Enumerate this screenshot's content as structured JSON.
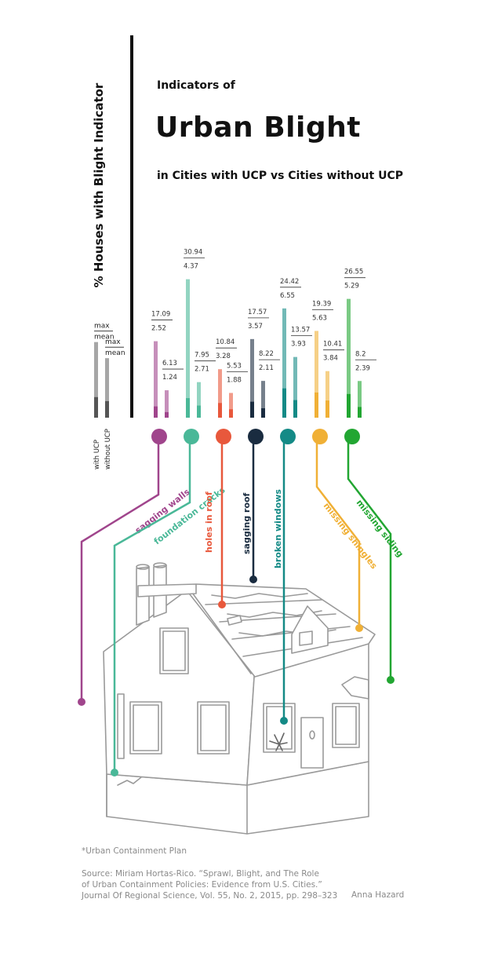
{
  "title": {
    "top": "Indicators of",
    "main": "Urban Blight",
    "subtitle": "in Cities with UCP vs Cities without UCP"
  },
  "ylabel": "% Houses with Blight Indicator",
  "legend": {
    "max_label": "max",
    "mean_label": "mean",
    "with_label": "with UCP",
    "without_label": "without UCP",
    "color": "#888888"
  },
  "chart_data": {
    "type": "bar",
    "title": "Urban Blight",
    "ylabel": "% Houses with Blight Indicator",
    "series": [
      {
        "name": "with UCP"
      },
      {
        "name": "without UCP"
      }
    ],
    "indicators": [
      {
        "name": "sagging walls",
        "color": "#a0458c",
        "with_ucp": {
          "max": 17.09,
          "mean": 2.52
        },
        "without_ucp": {
          "max": 6.13,
          "mean": 1.24
        }
      },
      {
        "name": "foundation cracks",
        "color": "#4ab898",
        "with_ucp": {
          "max": 30.94,
          "mean": 4.37
        },
        "without_ucp": {
          "max": 7.95,
          "mean": 2.71
        }
      },
      {
        "name": "holes in roof",
        "color": "#e8583c",
        "with_ucp": {
          "max": 10.84,
          "mean": 3.28
        },
        "without_ucp": {
          "max": 5.53,
          "mean": 1.88
        }
      },
      {
        "name": "sagging roof",
        "color": "#1a2c40",
        "with_ucp": {
          "max": 17.57,
          "mean": 3.57
        },
        "without_ucp": {
          "max": 8.22,
          "mean": 2.11
        }
      },
      {
        "name": "broken windows",
        "color": "#148a86",
        "with_ucp": {
          "max": 24.42,
          "mean": 6.55
        },
        "without_ucp": {
          "max": 13.57,
          "mean": 3.93
        }
      },
      {
        "name": "missing shingles",
        "color": "#f0b036",
        "with_ucp": {
          "max": 19.39,
          "mean": 5.63
        },
        "without_ucp": {
          "max": 10.41,
          "mean": 3.84
        }
      },
      {
        "name": "missing siding",
        "color": "#22a632",
        "with_ucp": {
          "max": 26.55,
          "mean": 5.29
        },
        "without_ucp": {
          "max": 8.2,
          "mean": 2.39
        }
      }
    ]
  },
  "footnote": "*Urban Containment Plan",
  "source": {
    "line1": "Source: Miriam Hortas-Rico. “Sprawl, Blight, and The Role",
    "line2": "of Urban Containment Policies: Evidence from U.S. Cities.”",
    "line3": "Journal Of Regional Science, Vol. 55, No. 2, 2015, pp. 298–323"
  },
  "author": "Anna Hazard"
}
